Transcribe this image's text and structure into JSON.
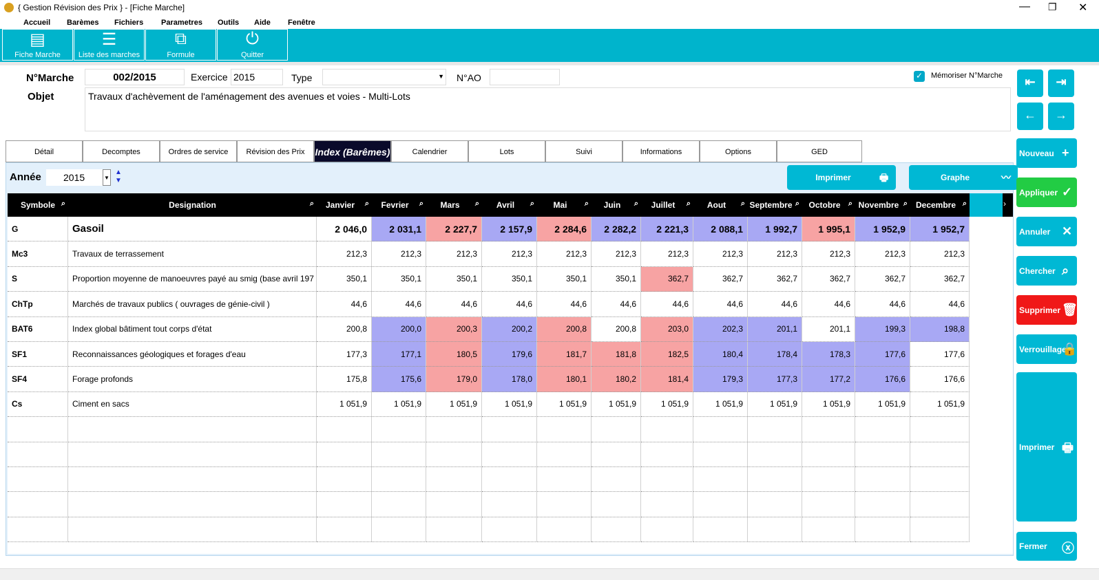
{
  "window": {
    "title": "{   Gestion Révision des Prix   } - [Fiche Marche]"
  },
  "menu": [
    "Accueil",
    "Barèmes",
    "Fichiers",
    "Parametres",
    "Outils",
    "Aide",
    "Fenêtre"
  ],
  "toolbar": [
    "Fiche Marche",
    "Liste des marches",
    "Formule",
    "Quitter"
  ],
  "form": {
    "marche_label": "N°Marche",
    "marche": "002/2015",
    "exercice_label": "Exercice",
    "exercice": "2015",
    "type_label": "Type",
    "ao_label": "N°AO",
    "memoriser": "Mémoriser N°Marche",
    "objet_label": "Objet",
    "objet": "Travaux d'achèvement de l'aménagement des avenues et voies - Multi-Lots"
  },
  "tabs": [
    "Détail",
    "Decomptes",
    "Ordres de service",
    "Révision des Prix",
    "Index (Barêmes)",
    "Calendrier",
    "Lots",
    "Suivi",
    "Informations",
    "Options",
    "GED"
  ],
  "active_tab": 4,
  "annee_label": "Année",
  "annee": "2015",
  "panel_buttons": [
    "Imprimer",
    "Graphe"
  ],
  "table": {
    "headers": [
      "Symbole",
      "Designation",
      "Janvier",
      "Fevrier",
      "Mars",
      "Avril",
      "Mai",
      "Juin",
      "Juillet",
      "Aout",
      "Septembre",
      "Octobre",
      "Novembre",
      "Decembre"
    ],
    "colors": {
      "up": "#f7a3a3",
      "down": "#a8a8f4"
    },
    "rows": [
      [
        "G",
        "Gasoil",
        "2 046,0",
        "2 031,1",
        "2 227,7",
        "2 157,9",
        "2 284,6",
        "2 282,2",
        "2 221,3",
        "2 088,1",
        "1 992,7",
        "1 995,1",
        "1 952,9",
        "1 952,7"
      ],
      [
        "Mc3",
        "Travaux de terrassement",
        "212,3",
        "212,3",
        "212,3",
        "212,3",
        "212,3",
        "212,3",
        "212,3",
        "212,3",
        "212,3",
        "212,3",
        "212,3",
        "212,3"
      ],
      [
        "S",
        "Proportion moyenne de manoeuvres payé au smig (base avril 197",
        "350,1",
        "350,1",
        "350,1",
        "350,1",
        "350,1",
        "350,1",
        "362,7",
        "362,7",
        "362,7",
        "362,7",
        "362,7",
        "362,7"
      ],
      [
        "ChTp",
        "Marchés de travaux publics ( ouvrages de génie-civil )",
        "44,6",
        "44,6",
        "44,6",
        "44,6",
        "44,6",
        "44,6",
        "44,6",
        "44,6",
        "44,6",
        "44,6",
        "44,6",
        "44,6"
      ],
      [
        "BAT6",
        "Index global bâtiment tout corps d'état",
        "200,8",
        "200,0",
        "200,3",
        "200,2",
        "200,8",
        "200,8",
        "203,0",
        "202,3",
        "201,1",
        "201,1",
        "199,3",
        "198,8"
      ],
      [
        "SF1",
        "Reconnaissances géologiques et forages d'eau",
        "177,3",
        "177,1",
        "180,5",
        "179,6",
        "181,7",
        "181,8",
        "182,5",
        "180,4",
        "178,4",
        "178,3",
        "177,6",
        "177,6"
      ],
      [
        "SF4",
        "Forage profonds",
        "175,8",
        "175,6",
        "179,0",
        "178,0",
        "180,1",
        "180,2",
        "181,4",
        "179,3",
        "177,3",
        "177,2",
        "176,6",
        "176,6"
      ],
      [
        "Cs",
        "Ciment en sacs",
        "1 051,9",
        "1 051,9",
        "1 051,9",
        "1 051,9",
        "1 051,9",
        "1 051,9",
        "1 051,9",
        "1 051,9",
        "1 051,9",
        "1 051,9",
        "1 051,9",
        "1 051,9"
      ]
    ],
    "shading": [
      [
        null,
        "down",
        "up",
        "down",
        "up",
        "down",
        "down",
        "down",
        "down",
        "up",
        "down",
        "down"
      ],
      [
        null,
        null,
        null,
        null,
        null,
        null,
        null,
        null,
        null,
        null,
        null,
        null
      ],
      [
        null,
        null,
        null,
        null,
        null,
        null,
        "up",
        null,
        null,
        null,
        null,
        null
      ],
      [
        null,
        null,
        null,
        null,
        null,
        null,
        null,
        null,
        null,
        null,
        null,
        null
      ],
      [
        null,
        "down",
        "up",
        "down",
        "up",
        null,
        "up",
        "down",
        "down",
        null,
        "down",
        "down"
      ],
      [
        null,
        "down",
        "up",
        "down",
        "up",
        "up",
        "up",
        "down",
        "down",
        "down",
        "down",
        null
      ],
      [
        null,
        "down",
        "up",
        "down",
        "up",
        "up",
        "up",
        "down",
        "down",
        "down",
        "down",
        null
      ],
      [
        null,
        null,
        null,
        null,
        null,
        null,
        null,
        null,
        null,
        null,
        null,
        null
      ]
    ]
  },
  "side_buttons": [
    "Nouveau",
    "Appliquer",
    "Annuler",
    "Chercher",
    "Supprimer",
    "Verrouillage",
    "Imprimer",
    "Fermer"
  ]
}
